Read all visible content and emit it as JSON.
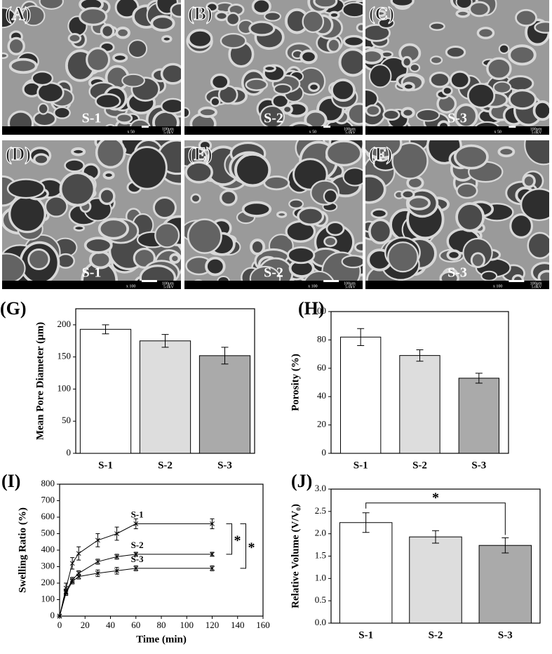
{
  "panels": [
    {
      "label": "(A)",
      "sample": "S-1",
      "magnification": "x 50",
      "scale": "100μm",
      "voltage": "5.0kV"
    },
    {
      "label": "(B)",
      "sample": "S-2",
      "magnification": "x 50",
      "scale": "100μm",
      "voltage": "5.0kV"
    },
    {
      "label": "(C)",
      "sample": "S-3",
      "magnification": "x 50",
      "scale": "100μm",
      "voltage": "5.0kV"
    },
    {
      "label": "(D)",
      "sample": "S-1",
      "magnification": "x 100",
      "scale": "100μm",
      "voltage": "5.0kV"
    },
    {
      "label": "(E)",
      "sample": "S-2",
      "magnification": "x 100",
      "scale": "100μm",
      "voltage": "5.0kV"
    },
    {
      "label": "(F)",
      "sample": "S-3",
      "magnification": "x 100",
      "scale": "100μm",
      "voltage": "5.0kV"
    }
  ],
  "chart_data": [
    {
      "type": "bar",
      "panel_label": "(G)",
      "ylabel": "Mean Pore Diameter (μm)",
      "categories": [
        "S-1",
        "S-2",
        "S-3"
      ],
      "series": [
        {
          "values": [
            193,
            175,
            152
          ],
          "errors": [
            7,
            10,
            13
          ],
          "colors": [
            "#ffffff",
            "#dddddd",
            "#aaaaaa"
          ]
        }
      ],
      "ylim": [
        0,
        225
      ],
      "yticks": [
        0,
        50,
        100,
        150,
        200
      ]
    },
    {
      "type": "bar",
      "panel_label": "(H)",
      "ylabel": "Porosity (%)",
      "categories": [
        "S-1",
        "S-2",
        "S-3"
      ],
      "series": [
        {
          "values": [
            82,
            69,
            53
          ],
          "errors": [
            6,
            4,
            3.5
          ],
          "colors": [
            "#ffffff",
            "#dddddd",
            "#aaaaaa"
          ]
        }
      ],
      "ylim": [
        0,
        100
      ],
      "yticks": [
        0,
        20,
        40,
        60,
        80,
        100
      ]
    },
    {
      "type": "line",
      "panel_label": "(I)",
      "xlabel": "Time (min)",
      "ylabel": "Swelling Ratio (%)",
      "x": [
        0,
        5,
        10,
        15,
        30,
        45,
        60,
        120
      ],
      "series": [
        {
          "name": "S-1",
          "color": "#000000",
          "values": [
            0,
            170,
            320,
            380,
            460,
            500,
            560,
            560
          ],
          "errors": [
            0,
            30,
            35,
            40,
            40,
            40,
            30,
            30
          ]
        },
        {
          "name": "S-2",
          "color": "#000000",
          "values": [
            0,
            150,
            220,
            260,
            330,
            360,
            375,
            375
          ],
          "errors": [
            0,
            15,
            15,
            15,
            15,
            15,
            12,
            12
          ]
        },
        {
          "name": "S-3",
          "color": "#000000",
          "values": [
            0,
            140,
            210,
            240,
            260,
            275,
            290,
            290
          ],
          "errors": [
            0,
            15,
            15,
            15,
            20,
            20,
            15,
            15
          ]
        }
      ],
      "xlim": [
        0,
        160
      ],
      "xticks": [
        0,
        20,
        40,
        60,
        80,
        100,
        120,
        140,
        160
      ],
      "ylim": [
        0,
        800
      ],
      "yticks": [
        0,
        100,
        200,
        300,
        400,
        500,
        600,
        700,
        800
      ],
      "annotations": [
        "*",
        "*"
      ]
    },
    {
      "type": "bar",
      "panel_label": "(J)",
      "ylabel": "Relative Volume (V/V₀)",
      "categories": [
        "S-1",
        "S-2",
        "S-3"
      ],
      "series": [
        {
          "values": [
            2.25,
            1.93,
            1.74
          ],
          "errors": [
            0.22,
            0.14,
            0.17
          ],
          "colors": [
            "#ffffff",
            "#dddddd",
            "#aaaaaa"
          ]
        }
      ],
      "ylim": [
        0,
        3
      ],
      "yticks": [
        {
          "value": 0,
          "label": "0.0"
        },
        {
          "value": 0.5,
          "label": "0.5"
        },
        {
          "value": 1,
          "label": "1.0"
        },
        {
          "value": 1.5,
          "label": "1.5"
        },
        {
          "value": 2,
          "label": "2.0"
        },
        {
          "value": 2.5,
          "label": "2.5"
        },
        {
          "value": 3,
          "label": "3.0"
        }
      ],
      "annotations": [
        "*"
      ]
    }
  ]
}
